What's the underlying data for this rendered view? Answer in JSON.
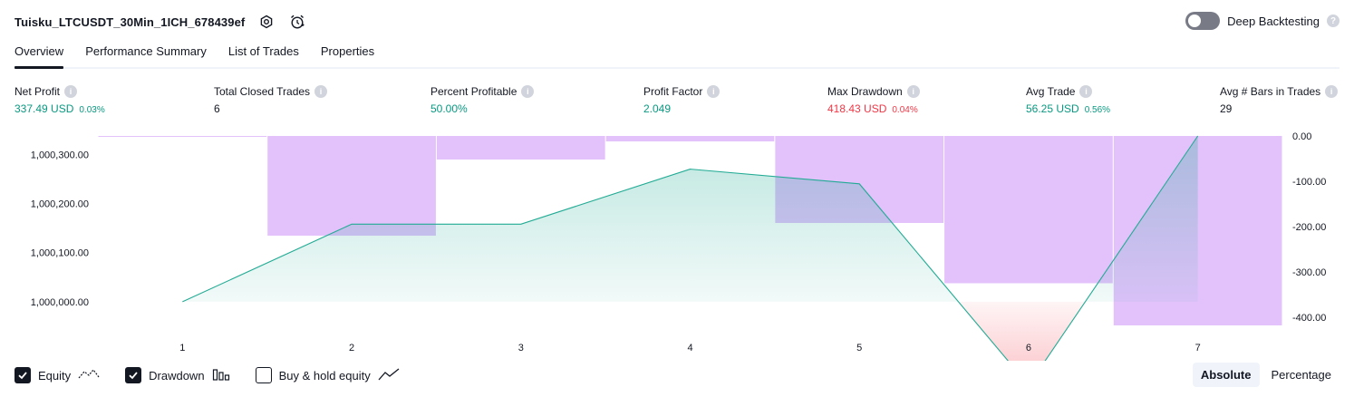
{
  "header": {
    "strategy_name": "Tuisku_LTCUSDT_30Min_1ICH_678439ef"
  },
  "deep_backtesting": {
    "label": "Deep Backtesting",
    "enabled": false
  },
  "tabs": [
    {
      "label": "Overview",
      "active": true
    },
    {
      "label": "Performance Summary",
      "active": false
    },
    {
      "label": "List of Trades",
      "active": false
    },
    {
      "label": "Properties",
      "active": false
    }
  ],
  "metrics": {
    "net_profit": {
      "label": "Net Profit",
      "value": "337.49 USD",
      "pct": "0.03%"
    },
    "total_closed_trades": {
      "label": "Total Closed Trades",
      "value": "6"
    },
    "percent_profitable": {
      "label": "Percent Profitable",
      "value": "50.00%"
    },
    "profit_factor": {
      "label": "Profit Factor",
      "value": "2.049"
    },
    "max_drawdown": {
      "label": "Max Drawdown",
      "value": "418.43 USD",
      "pct": "0.04%"
    },
    "avg_trade": {
      "label": "Avg Trade",
      "value": "56.25 USD",
      "pct": "0.56%"
    },
    "avg_bars": {
      "label": "Avg # Bars in Trades",
      "value": "29"
    }
  },
  "colors": {
    "positive": "#089981",
    "negative": "#f23645",
    "drawdown_fill": "#e1bffc",
    "equity_line": "#22ab94"
  },
  "chart_data": {
    "type": "area",
    "x": [
      1,
      2,
      3,
      4,
      5,
      6,
      7
    ],
    "left_axis": {
      "ticks": [
        "1,000,000.00",
        "1,000,100.00",
        "1,000,200.00",
        "1,000,300.00"
      ],
      "tick_values": [
        1000000,
        1000100,
        1000200,
        1000300
      ],
      "range": [
        999950,
        1000337.49
      ]
    },
    "right_axis": {
      "ticks": [
        "0.00",
        "-100.00",
        "-200.00",
        "-300.00",
        "-400.00"
      ],
      "tick_values": [
        0,
        -100,
        -200,
        -300,
        -400
      ],
      "range": [
        -420,
        0
      ]
    },
    "series": [
      {
        "name": "Equity",
        "axis": "left",
        "values": [
          1000000,
          1000158,
          1000158,
          1000270,
          1000240,
          999830,
          1000337.49
        ]
      },
      {
        "name": "Drawdown",
        "axis": "right",
        "type": "bar",
        "values": [
          -2,
          -220,
          -52,
          -12,
          -192,
          -325,
          -418
        ]
      }
    ],
    "grid": false
  },
  "legend": {
    "equity": {
      "label": "Equity",
      "checked": true
    },
    "drawdown": {
      "label": "Drawdown",
      "checked": true
    },
    "buy_hold": {
      "label": "Buy & hold equity",
      "checked": false
    }
  },
  "modes": [
    {
      "label": "Absolute",
      "active": true
    },
    {
      "label": "Percentage",
      "active": false
    }
  ]
}
